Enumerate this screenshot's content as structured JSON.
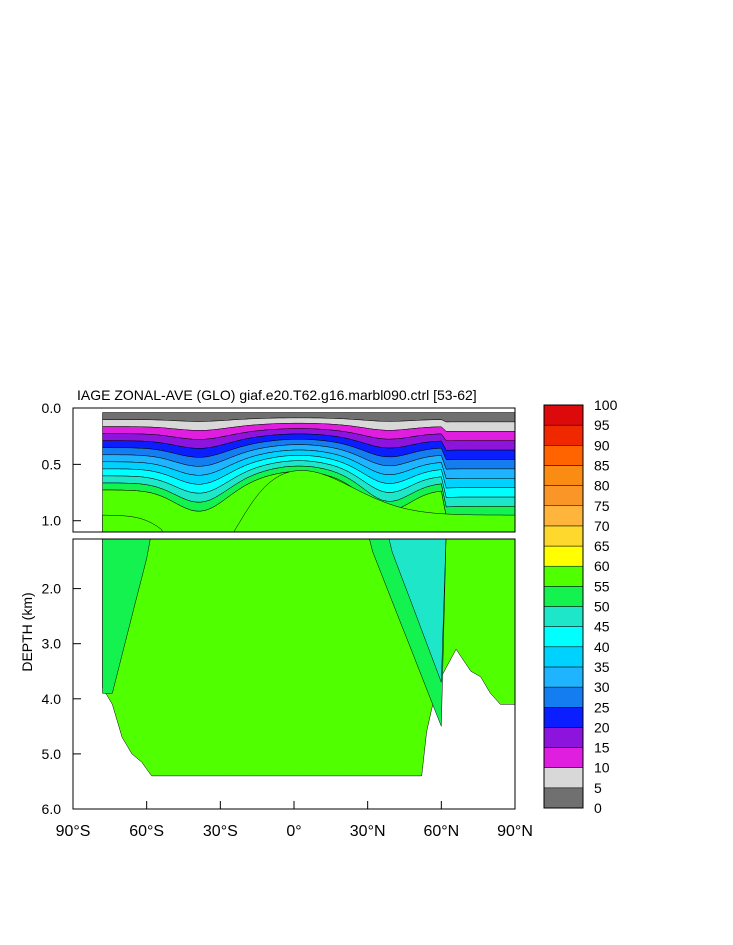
{
  "chart_data": {
    "type": "heatmap",
    "title": "IAGE ZONAL-AVE (GLO) giaf.e20.T62.g16.marbl090.ctrl [53-62]",
    "ylabel": "DEPTH (km)",
    "xlabel": "",
    "xlim": [
      -90,
      90
    ],
    "ylim": [
      0,
      6
    ],
    "x_ticks": [
      "90°S",
      "60°S",
      "30°S",
      "0°",
      "30°N",
      "60°N",
      "90°N"
    ],
    "y_ticks_upper": [
      "0.0",
      "0.5",
      "1.0"
    ],
    "y_ticks_lower": [
      "2.0",
      "3.0",
      "4.0",
      "5.0",
      "6.0"
    ],
    "upper_panel_depth_range": [
      0,
      1.1
    ],
    "lower_panel_depth_range": [
      1.1,
      6
    ],
    "colorbar": {
      "labels": [
        "100",
        "95",
        "90",
        "85",
        "80",
        "75",
        "70",
        "65",
        "60",
        "55",
        "50",
        "45",
        "40",
        "35",
        "30",
        "25",
        "20",
        "15",
        "10",
        "5",
        "0"
      ],
      "levels": [
        0,
        5,
        10,
        15,
        20,
        25,
        30,
        35,
        40,
        45,
        50,
        55,
        60,
        65,
        70,
        75,
        80,
        85,
        90,
        95,
        100
      ],
      "colors": [
        "#707070",
        "#d8d8d8",
        "#e01ee0",
        "#8c14dc",
        "#0a1eff",
        "#147ef0",
        "#1eb4ff",
        "#00d2ff",
        "#00ffff",
        "#1ee6c8",
        "#14f250",
        "#50ff00",
        "#ffff00",
        "#ffd82e",
        "#ffb43c",
        "#fa9628",
        "#fa8c14",
        "#ff6400",
        "#f02800",
        "#dc0a0a"
      ]
    },
    "ocean_mask": {
      "southern_edge_lat": -78,
      "bottom_depth_km": [
        [
          -78,
          3.8
        ],
        [
          -74,
          4.1
        ],
        [
          -70,
          4.7
        ],
        [
          -66,
          5.0
        ],
        [
          -62,
          5.15
        ],
        [
          -58,
          5.4
        ],
        [
          -54,
          5.4
        ],
        [
          -50,
          5.4
        ],
        [
          -20,
          5.4
        ],
        [
          0,
          5.4
        ],
        [
          20,
          5.4
        ],
        [
          40,
          5.4
        ],
        [
          52,
          5.4
        ],
        [
          54,
          4.6
        ],
        [
          57,
          4.0
        ],
        [
          60,
          3.6
        ],
        [
          63,
          3.35
        ],
        [
          66,
          3.1
        ],
        [
          69,
          3.3
        ],
        [
          72,
          3.5
        ],
        [
          76,
          3.6
        ],
        [
          80,
          3.9
        ],
        [
          84,
          4.1
        ],
        [
          90,
          4.1
        ]
      ]
    }
  }
}
